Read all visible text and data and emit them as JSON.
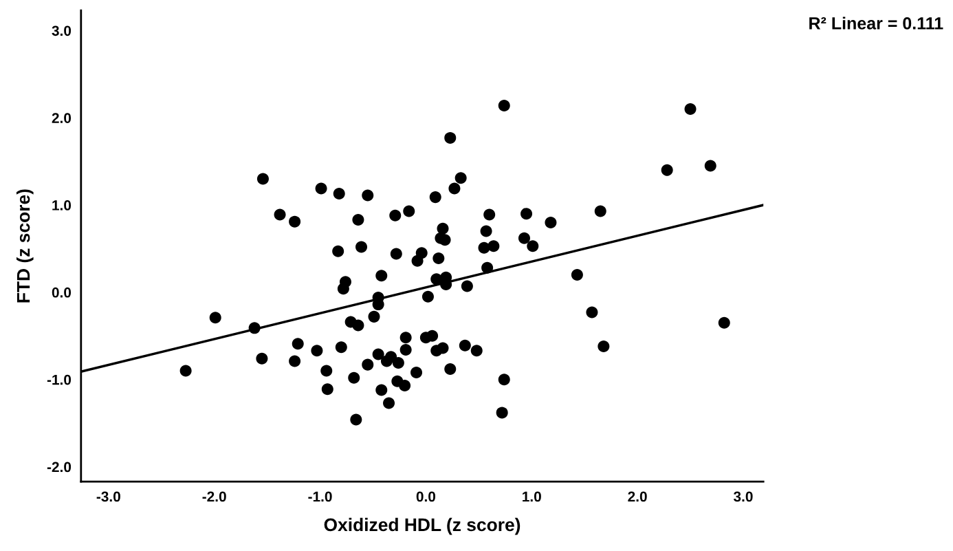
{
  "chart_data": {
    "type": "scatter",
    "xlabel": "Oxidized HDL (z score)",
    "ylabel": "FTD (z score)",
    "annotations": [
      "R² Linear = 0.111"
    ],
    "xlim": [
      -3.26,
      3.19
    ],
    "ylim": [
      -2.17,
      3.23
    ],
    "xticks": [
      {
        "value": -3,
        "label": "-3.0"
      },
      {
        "value": -2,
        "label": "-2.0"
      },
      {
        "value": -1,
        "label": "-1.0"
      },
      {
        "value": 0,
        "label": "0.0"
      },
      {
        "value": 1,
        "label": "1.0"
      },
      {
        "value": 2,
        "label": "2.0"
      },
      {
        "value": 3,
        "label": "3.0"
      }
    ],
    "yticks": [
      {
        "value": -2,
        "label": "-2.0"
      },
      {
        "value": -1,
        "label": "-1.0"
      },
      {
        "value": 0,
        "label": "0.0"
      },
      {
        "value": 1,
        "label": "1.0"
      },
      {
        "value": 2,
        "label": "2.0"
      },
      {
        "value": 3,
        "label": "3.0"
      }
    ],
    "grid": false,
    "series": [
      {
        "marker": "circle",
        "color": "#000000",
        "x": [
          -1.54,
          -0.99,
          -0.82,
          -0.55,
          0.09,
          -1.38,
          -1.24,
          -0.64,
          -0.29,
          -0.16,
          -0.83,
          -0.61,
          -0.28,
          -0.04,
          -0.08,
          0.12,
          -0.42,
          -0.76,
          -0.78,
          -0.45,
          -0.45,
          0.02,
          -0.49,
          -1.99,
          -1.62,
          -0.71,
          -0.64,
          -0.19,
          0.0,
          0.06,
          -1.21,
          -1.03,
          -0.8,
          -0.19,
          -1.55,
          -1.24,
          -0.45,
          -0.37,
          -0.33,
          -0.26,
          -0.55,
          0.1,
          0.16,
          -2.27,
          -0.94,
          -0.09,
          -0.68,
          -0.93,
          -0.27,
          -0.2,
          -0.42,
          -0.35,
          -0.66,
          0.74,
          2.5,
          0.23,
          2.28,
          2.69,
          0.33,
          0.27,
          0.6,
          0.95,
          1.18,
          1.65,
          0.16,
          0.14,
          0.18,
          0.57,
          0.93,
          1.01,
          0.55,
          0.64,
          0.58,
          1.43,
          0.1,
          0.19,
          0.19,
          0.39,
          1.57,
          2.82,
          0.37,
          0.48,
          1.68,
          0.23,
          0.74,
          0.72
        ],
        "values": [
          1.3,
          1.19,
          1.13,
          1.11,
          1.09,
          0.89,
          0.81,
          0.83,
          0.88,
          0.93,
          0.47,
          0.52,
          0.44,
          0.45,
          0.36,
          0.39,
          0.19,
          0.12,
          0.04,
          -0.06,
          -0.14,
          -0.05,
          -0.28,
          -0.29,
          -0.41,
          -0.34,
          -0.38,
          -0.52,
          -0.52,
          -0.5,
          -0.59,
          -0.67,
          -0.63,
          -0.66,
          -0.76,
          -0.79,
          -0.71,
          -0.79,
          -0.74,
          -0.81,
          -0.83,
          -0.67,
          -0.64,
          -0.9,
          -0.9,
          -0.92,
          -0.98,
          -1.11,
          -1.02,
          -1.07,
          -1.12,
          -1.27,
          -1.46,
          2.14,
          2.1,
          1.77,
          1.4,
          1.45,
          1.31,
          1.19,
          0.89,
          0.9,
          0.8,
          0.93,
          0.73,
          0.62,
          0.6,
          0.7,
          0.62,
          0.53,
          0.51,
          0.53,
          0.28,
          0.2,
          0.15,
          0.17,
          0.09,
          0.07,
          -0.23,
          -0.35,
          -0.61,
          -0.67,
          -0.62,
          -0.88,
          -1.0,
          -1.38
        ]
      },
      {
        "type": "line",
        "marker": "none",
        "color": "#000000",
        "line_style": "solid",
        "x": [
          -3.26,
          3.19
        ],
        "values": [
          -0.91,
          1.0
        ]
      }
    ]
  }
}
